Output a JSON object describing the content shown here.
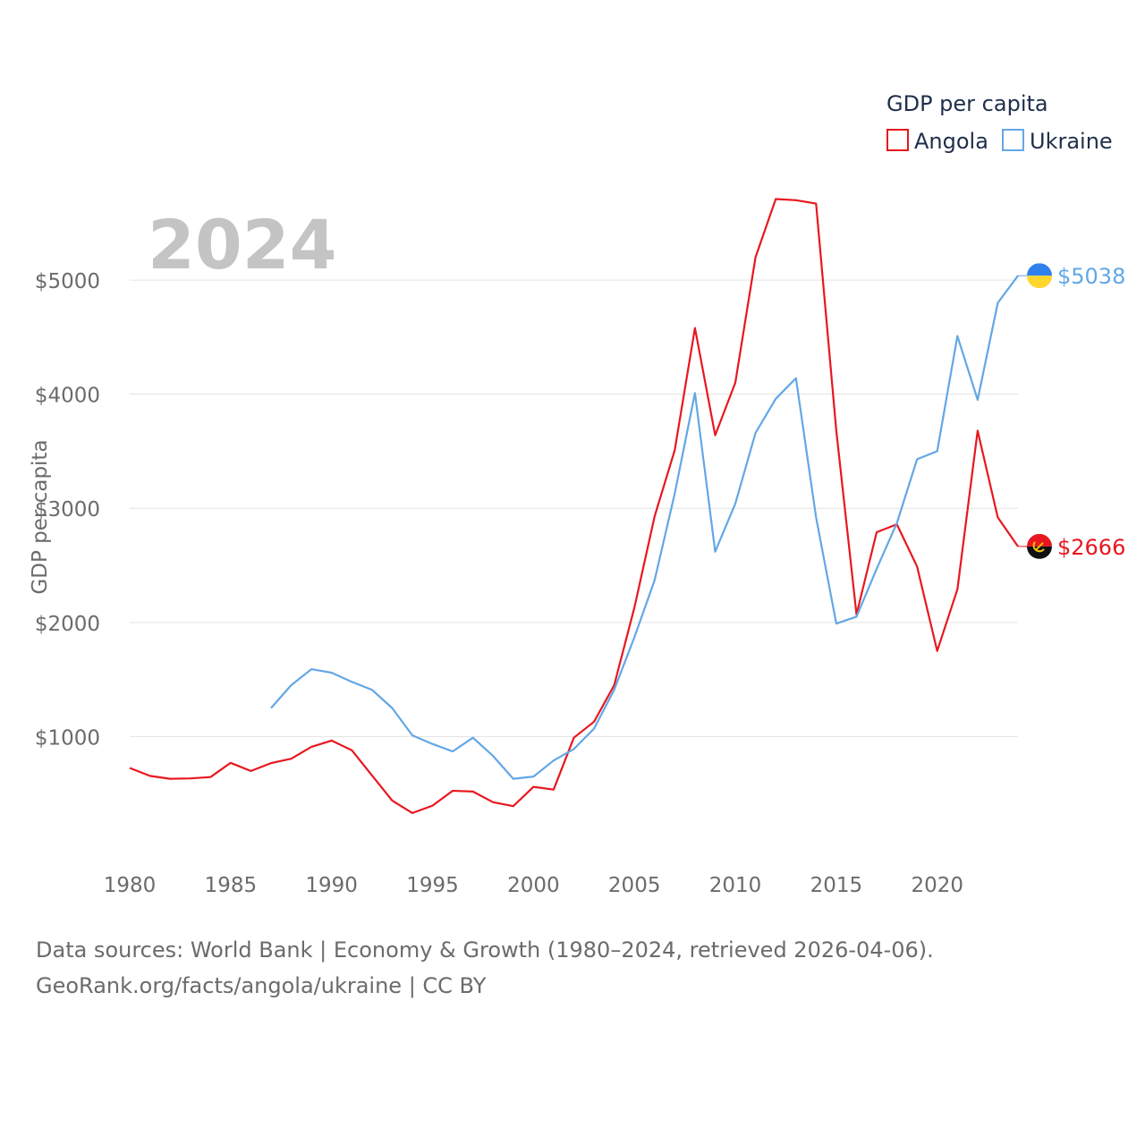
{
  "colors": {
    "angola": "#e8171f",
    "ukraine": "#63a7e5",
    "grid": "#e3e3e3",
    "text": "#6b6b6b",
    "year_watermark": "#c4c4c4",
    "legend_title": "#1f2f4a",
    "flag_ukraine_top": "#2f80ed",
    "flag_ukraine_bottom": "#ffd52e",
    "flag_angola_top": "#e8171f",
    "flag_angola_bottom": "#111111",
    "flag_angola_emblem": "#f4c20d"
  },
  "chart_data": {
    "type": "line",
    "title": "GDP per capita",
    "ylabel": "GDP per capita",
    "xlabel": "",
    "current_year_label": "2024",
    "xlim": [
      1980,
      2024
    ],
    "ylim": [
      0,
      5800
    ],
    "x_ticks": [
      1980,
      1985,
      1990,
      1995,
      2000,
      2005,
      2010,
      2015,
      2020
    ],
    "x_tick_labels": [
      "1980",
      "1985",
      "1990",
      "1995",
      "2000",
      "2005",
      "2010",
      "2015",
      "2020"
    ],
    "y_ticks": [
      1000,
      2000,
      3000,
      4000,
      5000
    ],
    "y_tick_labels": [
      "$1000",
      "$2000",
      "$3000",
      "$4000",
      "$5000"
    ],
    "legend_title": "GDP per capita",
    "series": [
      {
        "name": "Angola",
        "color_key": "angola",
        "end_label": "$2666",
        "x": [
          1980,
          1981,
          1982,
          1983,
          1984,
          1985,
          1986,
          1987,
          1988,
          1989,
          1990,
          1991,
          1992,
          1993,
          1994,
          1995,
          1996,
          1997,
          1998,
          1999,
          2000,
          2001,
          2002,
          2003,
          2004,
          2005,
          2006,
          2007,
          2008,
          2009,
          2010,
          2011,
          2012,
          2013,
          2014,
          2015,
          2016,
          2017,
          2018,
          2019,
          2020,
          2021,
          2022,
          2023,
          2024
        ],
        "values": [
          725,
          655,
          630,
          633,
          645,
          770,
          698,
          767,
          806,
          910,
          965,
          880,
          660,
          440,
          330,
          395,
          525,
          518,
          425,
          390,
          560,
          535,
          990,
          1130,
          1450,
          2130,
          2930,
          3510,
          4580,
          3640,
          4100,
          5200,
          5710,
          5700,
          5670,
          3680,
          2070,
          2790,
          2860,
          2490,
          1750,
          2290,
          3680,
          2920,
          2666
        ]
      },
      {
        "name": "Ukraine",
        "color_key": "ukraine",
        "end_label": "$5038",
        "x": [
          1987,
          1988,
          1989,
          1990,
          1991,
          1992,
          1993,
          1994,
          1995,
          1996,
          1997,
          1998,
          1999,
          2000,
          2001,
          2002,
          2003,
          2004,
          2005,
          2006,
          2007,
          2008,
          2009,
          2010,
          2011,
          2012,
          2013,
          2014,
          2015,
          2016,
          2017,
          2018,
          2019,
          2020,
          2021,
          2022,
          2023,
          2024
        ],
        "values": [
          1250,
          1450,
          1590,
          1560,
          1480,
          1410,
          1250,
          1010,
          935,
          870,
          990,
          830,
          630,
          650,
          790,
          890,
          1070,
          1410,
          1870,
          2370,
          3130,
          4010,
          2620,
          3040,
          3660,
          3960,
          4140,
          2920,
          1990,
          2050,
          2470,
          2870,
          3430,
          3500,
          4510,
          3950,
          4800,
          5038
        ]
      }
    ]
  },
  "footer": {
    "line1": "Data sources: World Bank | Economy & Growth (1980–2024, retrieved 2026-04-06).",
    "line2": "GeoRank.org/facts/angola/ukraine | CC BY"
  }
}
